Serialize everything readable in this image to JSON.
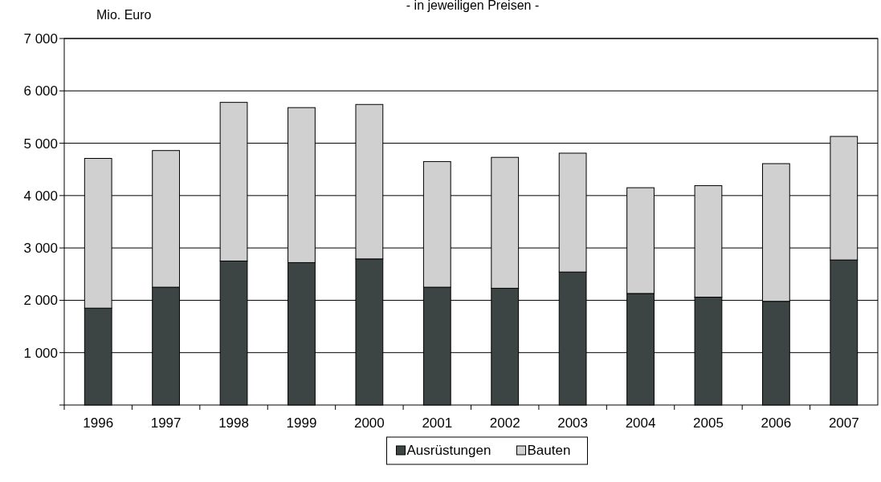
{
  "chart_data": {
    "type": "bar",
    "subtitle": "- in jeweiligen Preisen -",
    "ylabel": "Mio. Euro",
    "categories": [
      "1996",
      "1997",
      "1998",
      "1999",
      "2000",
      "2001",
      "2002",
      "2003",
      "2004",
      "2005",
      "2006",
      "2007"
    ],
    "stacked": true,
    "series": [
      {
        "name": "Ausrüstungen",
        "color": "#3d4544",
        "values": [
          1850,
          2250,
          2750,
          2720,
          2790,
          2250,
          2230,
          2540,
          2130,
          2060,
          1980,
          2770
        ]
      },
      {
        "name": "Bauten",
        "color": "#d0d0d0",
        "values": [
          2860,
          2610,
          3030,
          2960,
          2950,
          2400,
          2500,
          2270,
          2020,
          2130,
          2630,
          2360
        ]
      }
    ],
    "ylim": [
      0,
      7000
    ],
    "yticks": [
      {
        "value": 0,
        "label": null
      },
      {
        "value": 1000,
        "label": "1 000"
      },
      {
        "value": 2000,
        "label": "2 000"
      },
      {
        "value": 3000,
        "label": "3 000"
      },
      {
        "value": 4000,
        "label": "4 000"
      },
      {
        "value": 5000,
        "label": "5 000"
      },
      {
        "value": 6000,
        "label": "6 000"
      },
      {
        "value": 7000,
        "label": "7 000"
      }
    ],
    "grid": "y",
    "legend": "bottom"
  }
}
